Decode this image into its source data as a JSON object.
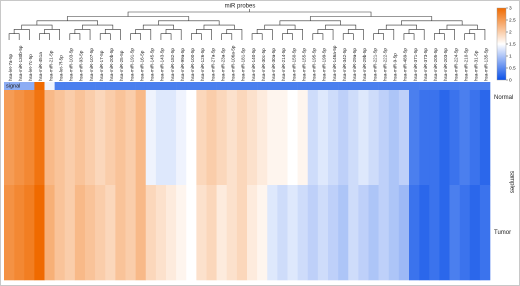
{
  "chart_data": {
    "type": "heatmap",
    "title": "miR probes",
    "y_label": "samples",
    "rows": [
      "Normal",
      "Tumor"
    ],
    "columns": [
      "hsa-let-7a-5p",
      "hsa-miR-130b-5p",
      "hsa-let-7c-5p",
      "hsa-miR-451a",
      "hsa-miR-21-5p",
      "hsa-let-7f-5p",
      "hsa-miR-103-5p",
      "hsa-miR-93-5p",
      "hsa-miR-107-5p",
      "hsa-miR-17-5p",
      "hsa-miR-20b-5p",
      "hsa-miR-25-5p",
      "hsa-miR-191-5p",
      "hsa-miR-16-5p",
      "hsa-miR-145-5p",
      "hsa-miR-143-5p",
      "hsa-miR-182-5p",
      "hsa-miR-99a-5p",
      "hsa-miR-100-5p",
      "hsa-miR-126-5p",
      "hsa-miR-27a-5p",
      "hsa-miR-23a-5p",
      "hsa-miR-106a-5p",
      "hsa-miR-181-5p",
      "hsa-miR-140-5p",
      "hsa-miR-30c-5p",
      "hsa-miR-30a-5p",
      "hsa-miR-214-5p",
      "hsa-miR-150-5p",
      "hsa-miR-155-5p",
      "hsa-miR-195-5p",
      "hsa-miR-199-5p",
      "hsa-miR-146a-5p",
      "hsa-miR-342-5p",
      "hsa-miR-29a-5p",
      "hsa-miR-29b-5p",
      "hsa-miR-221-5p",
      "hsa-miR-222-5p",
      "hsa-miR-9-5p",
      "hsa-miR-489-5p",
      "hsa-miR-371-5p",
      "hsa-miR-373-5p",
      "hsa-miR-205-5p",
      "hsa-miR-203-5p",
      "hsa-miR-224-5p",
      "hsa-miR-210-5p",
      "hsa-miR-31-5p",
      "hsa-miR-135-5p"
    ],
    "values": [
      [
        2.5,
        2.6,
        2.7,
        2.9,
        2.2,
        2.1,
        2.0,
        2.1,
        2.0,
        1.9,
        2.0,
        2.1,
        2.0,
        2.2,
        1.4,
        1.3,
        1.3,
        1.4,
        1.5,
        1.9,
        2.0,
        1.9,
        1.8,
        1.9,
        1.8,
        1.7,
        1.6,
        1.6,
        1.5,
        1.6,
        1.2,
        1.3,
        1.2,
        1.1,
        1.2,
        1.3,
        1.2,
        1.1,
        1.0,
        1.1,
        0.4,
        0.3,
        0.3,
        0.2,
        0.3,
        0.4,
        0.3,
        0.2
      ],
      [
        2.6,
        2.7,
        2.8,
        3.0,
        2.3,
        2.1,
        2.0,
        2.2,
        2.1,
        2.0,
        1.9,
        2.1,
        2.0,
        2.2,
        1.9,
        1.8,
        1.7,
        1.6,
        1.5,
        1.8,
        1.9,
        1.7,
        1.8,
        1.9,
        1.7,
        1.6,
        1.3,
        1.2,
        1.3,
        1.2,
        1.1,
        1.2,
        1.1,
        1.0,
        1.2,
        1.1,
        1.0,
        1.1,
        1.0,
        0.9,
        0.3,
        0.2,
        0.3,
        0.2,
        0.4,
        0.3,
        0.2,
        0.3
      ]
    ],
    "signal": {
      "name": "signal",
      "values": [
        0.8,
        0.8,
        0.8,
        3.0,
        1.4,
        0.4,
        0.4,
        0.4,
        0.4,
        0.4,
        0.4,
        0.4,
        0.4,
        0.4,
        0.4,
        0.4,
        0.4,
        0.4,
        0.4,
        0.4,
        0.4,
        0.4,
        0.4,
        0.4,
        0.4,
        0.4,
        0.4,
        0.4,
        0.4,
        0.4,
        0.4,
        0.4,
        0.4,
        0.4,
        0.4,
        0.4,
        0.4,
        0.4,
        0.4,
        0.4,
        0.4,
        0.4,
        0.4,
        0.4,
        0.4,
        0.4,
        0.4,
        0.4
      ]
    },
    "clim": [
      0,
      3
    ],
    "colors": [
      "#0a50e8",
      "#ffffff",
      "#f06a00"
    ],
    "cticks": [
      0,
      0.5,
      1,
      1.5,
      2,
      2.5,
      3
    ]
  }
}
